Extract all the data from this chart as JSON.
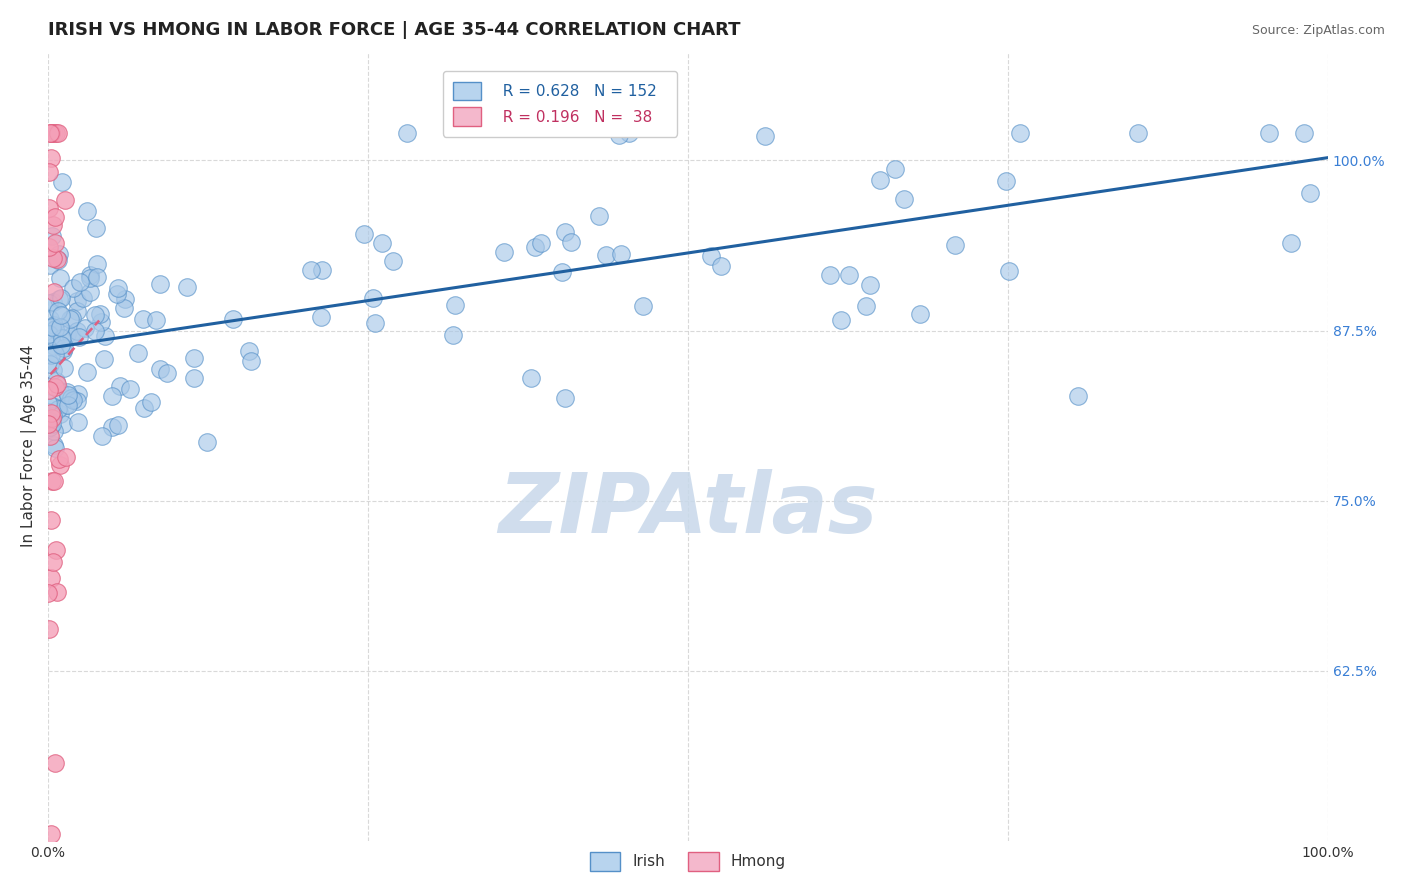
{
  "title": "IRISH VS HMONG IN LABOR FORCE | AGE 35-44 CORRELATION CHART",
  "source_text": "Source: ZipAtlas.com",
  "ylabel": "In Labor Force | Age 35-44",
  "xlim": [
    0.0,
    1.0
  ],
  "ylim": [
    0.5,
    1.08
  ],
  "ytick_positions": [
    0.625,
    0.75,
    0.875,
    1.0
  ],
  "ytick_labels": [
    "62.5%",
    "75.0%",
    "87.5%",
    "100.0%"
  ],
  "irish_color": "#a8c8e8",
  "hmong_color": "#f4a0b8",
  "irish_edge_color": "#5590c8",
  "hmong_edge_color": "#e06080",
  "irish_line_color": "#2060a0",
  "hmong_line_color": "#e06080",
  "legend_irish_color": "#b8d4ee",
  "legend_hmong_color": "#f4b8cc",
  "R_irish": 0.628,
  "N_irish": 152,
  "R_hmong": 0.196,
  "N_hmong": 38,
  "watermark": "ZIPAtlas",
  "watermark_color": "#c8d8ea",
  "grid_color": "#d0d0d0",
  "title_fontsize": 13,
  "axis_label_fontsize": 11,
  "tick_fontsize": 10,
  "legend_fontsize": 11,
  "irish_seed": 42,
  "hmong_seed": 99
}
